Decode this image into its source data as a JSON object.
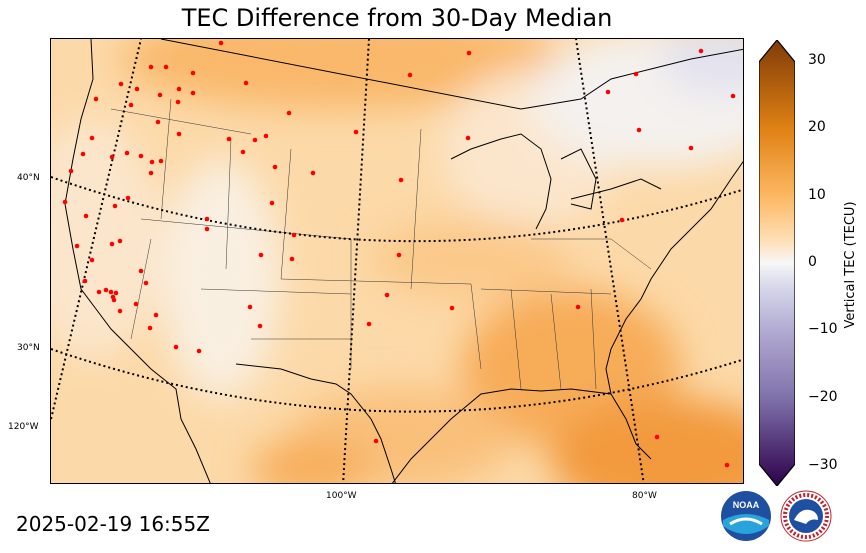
{
  "title": "TEC Difference from 30-Day Median",
  "timestamp": "2025-02-19 16:55Z",
  "colorbar": {
    "label": "Vertical TEC (TECU)",
    "ticks": [
      "30",
      "20",
      "10",
      "0",
      "−10",
      "−20",
      "−30"
    ],
    "range": [
      -30,
      30
    ],
    "colors": {
      "max": "#7f3b08",
      "high": "#e08214",
      "mid_high": "#fdb863",
      "low_pos": "#fee0b6",
      "zero": "#f7f7f7",
      "low_neg": "#d8daeb",
      "mid_low": "#b2abd2",
      "low": "#8073ac",
      "min": "#2d004b"
    }
  },
  "lat_labels": [
    "40°N",
    "30°N",
    "120°W"
  ],
  "lon_labels": [
    "100°W",
    "80°W"
  ],
  "markers": {
    "color": "#ff0000",
    "meaning": "GNSS station locations"
  },
  "logos": [
    "noaa-logo",
    "national-weather-service-logo"
  ],
  "logo_text": {
    "noaa": "NOAA",
    "nws": "NATIONAL WEATHER SERVICE"
  }
}
